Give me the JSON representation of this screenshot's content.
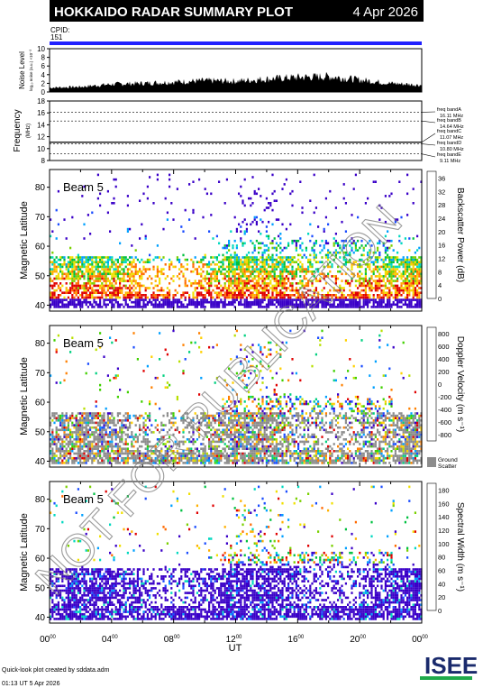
{
  "header": {
    "title": "HOKKAIDO RADAR SUMMARY PLOT",
    "date": "4 Apr 2026",
    "cpid_label": "CPID:",
    "cpid_value": "151"
  },
  "noise_panel": {
    "ylabel": "Noise Level",
    "ylabel_sub": "log₁₀ noise (a.u.) ×10⁻³",
    "ylim": [
      0,
      10
    ],
    "ticks": [
      "0",
      "2",
      "4",
      "6",
      "8",
      "10"
    ]
  },
  "frequency_panel": {
    "ylabel": "Frequency",
    "yunit": "(MHz)",
    "ylim": [
      8,
      18
    ],
    "ticks": [
      "8",
      "10",
      "12",
      "14",
      "16",
      "18"
    ],
    "bands": [
      {
        "label": "freq bandA",
        "value": "16.11 MHz",
        "freq": 16.11
      },
      {
        "label": "freq bandB",
        "value": "14.64 MHz",
        "freq": 14.64
      },
      {
        "label": "freq bandC",
        "value": "11.07 MHz",
        "freq": 11.07
      },
      {
        "label": "freq bandD",
        "value": "10.80 MHz",
        "freq": 10.8
      },
      {
        "label": "freq bandE",
        "value": "9.11 MHz",
        "freq": 9.11
      }
    ]
  },
  "panels": [
    {
      "beam": "Beam  5",
      "ylabel": "Magnetic Latitude",
      "colorbar_label": "Backscatter Power (dB)",
      "colorbar_ticks": [
        "0",
        "4",
        "8",
        "12",
        "16",
        "20",
        "24",
        "28",
        "32",
        "36"
      ],
      "colorbar_colors": [
        "#3a00c8",
        "#1a4cff",
        "#00a0ff",
        "#00d8c0",
        "#00c040",
        "#7ad000",
        "#f0e000",
        "#ffb000",
        "#ff6a00",
        "#e00000"
      ]
    },
    {
      "beam": "Beam  5",
      "ylabel": "Magnetic Latitude",
      "colorbar_label": "Doppler Velocity (m s⁻¹)",
      "colorbar_ticks": [
        "800",
        "600",
        "400",
        "200",
        "0",
        "-200",
        "-400",
        "-600",
        "-800"
      ],
      "colorbar_colors": [
        "#3a00c8",
        "#1a4cff",
        "#00a0ff",
        "#00d080",
        "#40d000",
        "#b8e000",
        "#ffd000",
        "#ff8000",
        "#e00000"
      ],
      "ground_scatter_label": [
        "Ground",
        "Scatter"
      ],
      "ground_scatter_color": "#8c8c8c"
    },
    {
      "beam": "Beam  5",
      "ylabel": "Magnetic Latitude",
      "colorbar_label": "Spectral Width (m s⁻¹)",
      "colorbar_ticks": [
        "0",
        "20",
        "40",
        "60",
        "80",
        "100",
        "120",
        "140",
        "160",
        "180"
      ],
      "colorbar_colors": [
        "#3a00c8",
        "#1a4cff",
        "#00a0ff",
        "#00d8c0",
        "#00c040",
        "#7ad000",
        "#f0e000",
        "#ffb000",
        "#ff6a00",
        "#e00000"
      ]
    }
  ],
  "xaxis": {
    "label": "UT",
    "ticks": [
      {
        "h": "00",
        "m": "00"
      },
      {
        "h": "04",
        "m": "00"
      },
      {
        "h": "08",
        "m": "00"
      },
      {
        "h": "12",
        "m": "00"
      },
      {
        "h": "16",
        "m": "00"
      },
      {
        "h": "20",
        "m": "00"
      },
      {
        "h": "00",
        "m": "00"
      }
    ]
  },
  "latitude_ticks": [
    "40",
    "50",
    "60",
    "70",
    "80"
  ],
  "footer": {
    "line1": "Quick-look plot created by sddata.adm",
    "line2": "01:13 UT  5 Apr 2026"
  },
  "logo_text": "ISEE",
  "watermark": "NOT FOR PUBLICATION",
  "chart_data": [
    {
      "type": "area",
      "ylabel": "Noise Level",
      "ylim": [
        0,
        10
      ],
      "x_hours": [
        0,
        2,
        4,
        6,
        8,
        10,
        12,
        14,
        16,
        18,
        20,
        22,
        24
      ],
      "values": [
        1.0,
        1.2,
        1.8,
        2.0,
        2.3,
        2.6,
        2.5,
        3.0,
        3.4,
        3.6,
        2.8,
        2.0,
        1.6
      ]
    },
    {
      "type": "line",
      "ylabel": "Frequency",
      "ylim": [
        8,
        18
      ],
      "series": [
        {
          "name": "freq bandC",
          "x_hours": [
            0,
            24
          ],
          "values": [
            11.07,
            11.07
          ]
        }
      ]
    },
    {
      "type": "heatmap",
      "ylabel": "Magnetic Latitude",
      "ylim": [
        38,
        86
      ],
      "xlim_hours": [
        0,
        24
      ],
      "colorbar": "Backscatter Power (dB)",
      "clim": [
        0,
        36
      ]
    },
    {
      "type": "heatmap",
      "ylabel": "Magnetic Latitude",
      "ylim": [
        38,
        86
      ],
      "xlim_hours": [
        0,
        24
      ],
      "colorbar": "Doppler Velocity (m s⁻¹)",
      "clim": [
        -800,
        800
      ]
    },
    {
      "type": "heatmap",
      "ylabel": "Magnetic Latitude",
      "ylim": [
        38,
        86
      ],
      "xlim_hours": [
        0,
        24
      ],
      "colorbar": "Spectral Width (m s⁻¹)",
      "clim": [
        0,
        180
      ]
    }
  ]
}
